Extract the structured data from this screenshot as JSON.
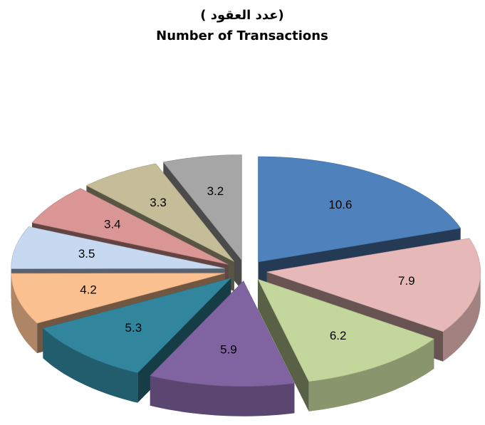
{
  "chart_data": {
    "type": "pie",
    "title": "(عدد العقود )",
    "subtitle": "Number of Transactions",
    "values": [
      10.6,
      7.9,
      6.2,
      5.9,
      5.3,
      4.2,
      3.5,
      3.4,
      3.3,
      3.2
    ],
    "colors": [
      "#4f81bd",
      "#e6b9b8",
      "#c3d69b",
      "#8064a2",
      "#31859c",
      "#fac090",
      "#c6d9f1",
      "#d99694",
      "#c4bd97",
      "#a6a6a6"
    ]
  }
}
